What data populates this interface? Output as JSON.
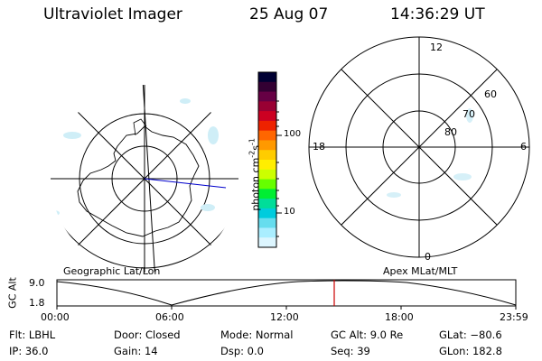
{
  "header": {
    "instrument": "Ultraviolet Imager",
    "date": "25 Aug 07",
    "time": "14:36:29 UT"
  },
  "left_map": {
    "caption": "Geographic Lat/Lon"
  },
  "right_map": {
    "caption": "Apex MLat/MLT",
    "mlt_top": "12",
    "mlt_left": "18",
    "mlt_right": "6",
    "mlt_bottom": "0",
    "lat_labels": [
      "60",
      "70",
      "80"
    ]
  },
  "colorbar": {
    "unit_label": "photon cm",
    "unit_exp1": "-2",
    "unit_mid": "s",
    "unit_exp2": "-1",
    "ticks": [
      "100",
      "10"
    ],
    "colors": [
      "#000033",
      "#330033",
      "#660044",
      "#990033",
      "#cc0022",
      "#ee2200",
      "#ff6600",
      "#ff9900",
      "#ffcc00",
      "#ffee00",
      "#ccff00",
      "#66ff00",
      "#00ee33",
      "#00dd99",
      "#00ccdd",
      "#66ddee",
      "#aaeeff",
      "#ddf6ff"
    ]
  },
  "altitude_plot": {
    "ylabel": "GC Alt",
    "y_ticks": [
      "9.0",
      "1.8"
    ],
    "x_ticks": [
      "00:00",
      "06:00",
      "12:00",
      "18:00",
      "23:59"
    ],
    "marker_color": "#cc0000"
  },
  "info": {
    "filter": "Flt: LBHL",
    "door": "Door: Closed",
    "mode": "Mode: Normal",
    "gc_alt": "GC Alt: 9.0 Re",
    "glat": "GLat: −80.6",
    "ip": "IP: 36.0",
    "gain": "Gain: 14",
    "dsp": "Dsp:    0.0",
    "seq": "Seq: 39",
    "glon": "GLon: 182.8"
  }
}
